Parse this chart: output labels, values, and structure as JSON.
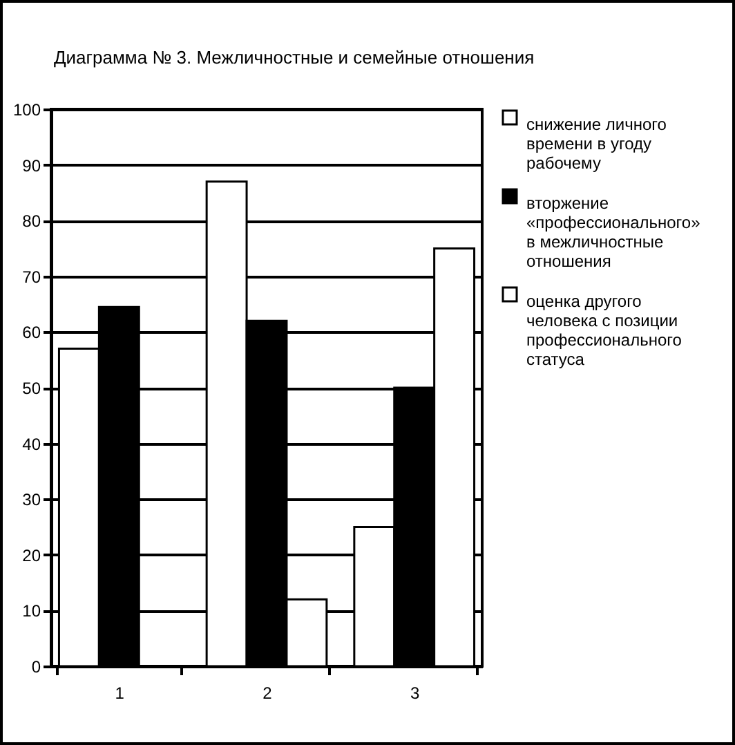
{
  "chart_data": {
    "type": "bar",
    "title": "Диаграмма № 3. Межличностные и семейные отношения",
    "categories": [
      "1",
      "2",
      "3"
    ],
    "series": [
      {
        "name": "снижение личного времени в угоду рабочему",
        "color": "#ffffff",
        "values": [
          57,
          87,
          25
        ]
      },
      {
        "name": "вторжение «профессионального» в межличностные отношения",
        "color": "#000000",
        "values": [
          64.5,
          62,
          50
        ]
      },
      {
        "name": "оценка другого человека с позиции профессионального статуса",
        "color": "#ffffff",
        "values": [
          null,
          12,
          75
        ]
      }
    ],
    "ylim": [
      0,
      100
    ],
    "yticks": [
      0,
      10,
      20,
      30,
      40,
      50,
      60,
      70,
      80,
      90,
      100
    ],
    "grid": "y",
    "legend": "right"
  }
}
